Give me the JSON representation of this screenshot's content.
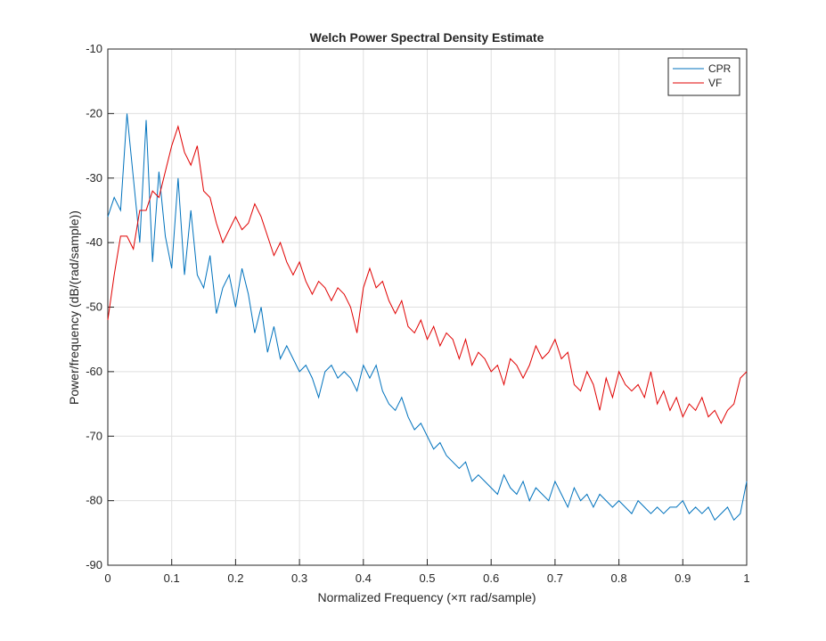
{
  "chart_data": {
    "type": "line",
    "title": "Welch Power Spectral Density Estimate",
    "x_label": "Normalized Frequency  (×π rad/sample)",
    "y_label": "Power/frequency (dB/(rad/sample))",
    "x": [
      0,
      0.01,
      0.02,
      0.03,
      0.04,
      0.05,
      0.06,
      0.07,
      0.08,
      0.09,
      0.1,
      0.11,
      0.12,
      0.13,
      0.14,
      0.15,
      0.16,
      0.17,
      0.18,
      0.19,
      0.2,
      0.21,
      0.22,
      0.23,
      0.24,
      0.25,
      0.26,
      0.27,
      0.28,
      0.29,
      0.3,
      0.31,
      0.32,
      0.33,
      0.34,
      0.35,
      0.36,
      0.37,
      0.38,
      0.39,
      0.4,
      0.41,
      0.42,
      0.43,
      0.44,
      0.45,
      0.46,
      0.47,
      0.48,
      0.49,
      0.5,
      0.51,
      0.52,
      0.53,
      0.54,
      0.55,
      0.56,
      0.57,
      0.58,
      0.59,
      0.6,
      0.61,
      0.62,
      0.63,
      0.64,
      0.65,
      0.66,
      0.67,
      0.68,
      0.69,
      0.7,
      0.71,
      0.72,
      0.73,
      0.74,
      0.75,
      0.76,
      0.77,
      0.78,
      0.79,
      0.8,
      0.81,
      0.82,
      0.83,
      0.84,
      0.85,
      0.86,
      0.87,
      0.88,
      0.89,
      0.9,
      0.91,
      0.92,
      0.93,
      0.94,
      0.95,
      0.96,
      0.97,
      0.98,
      0.99,
      1
    ],
    "series": [
      {
        "name": "CPR",
        "color": "#0072bd",
        "values": [
          -36,
          -33,
          -35,
          -20,
          -30,
          -40,
          -21,
          -43,
          -29,
          -39,
          -44,
          -30,
          -45,
          -35,
          -45,
          -47,
          -42,
          -51,
          -47,
          -45,
          -50,
          -44,
          -48,
          -54,
          -50,
          -57,
          -53,
          -58,
          -56,
          -58,
          -60,
          -59,
          -61,
          -64,
          -60,
          -59,
          -61,
          -60,
          -61,
          -63,
          -59,
          -61,
          -59,
          -63,
          -65,
          -66,
          -64,
          -67,
          -69,
          -68,
          -70,
          -72,
          -71,
          -73,
          -74,
          -75,
          -74,
          -77,
          -76,
          -77,
          -78,
          -79,
          -76,
          -78,
          -79,
          -77,
          -80,
          -78,
          -79,
          -80,
          -77,
          -79,
          -81,
          -78,
          -80,
          -79,
          -81,
          -79,
          -80,
          -81,
          -80,
          -81,
          -82,
          -80,
          -81,
          -82,
          -81,
          -82,
          -81,
          -81,
          -80,
          -82,
          -81,
          -82,
          -81,
          -83,
          -82,
          -81,
          -83,
          -82,
          -77
        ]
      },
      {
        "name": "VF",
        "color": "#e00000",
        "values": [
          -52,
          -45,
          -39,
          -39,
          -41,
          -35,
          -35,
          -32,
          -33,
          -29,
          -25,
          -22,
          -26,
          -28,
          -25,
          -32,
          -33,
          -37,
          -40,
          -38,
          -36,
          -38,
          -37,
          -34,
          -36,
          -39,
          -42,
          -40,
          -43,
          -45,
          -43,
          -46,
          -48,
          -46,
          -47,
          -49,
          -47,
          -48,
          -50,
          -54,
          -47,
          -44,
          -47,
          -46,
          -49,
          -51,
          -49,
          -53,
          -54,
          -52,
          -55,
          -53,
          -56,
          -54,
          -55,
          -58,
          -55,
          -59,
          -57,
          -58,
          -60,
          -59,
          -62,
          -58,
          -59,
          -61,
          -59,
          -56,
          -58,
          -57,
          -55,
          -58,
          -57,
          -62,
          -63,
          -60,
          -62,
          -66,
          -61,
          -64,
          -60,
          -62,
          -63,
          -62,
          -64,
          -60,
          -65,
          -63,
          -66,
          -64,
          -67,
          -65,
          -66,
          -64,
          -67,
          -66,
          -68,
          -66,
          -65,
          -61,
          -60
        ]
      }
    ],
    "xlim": [
      0,
      1
    ],
    "xticks": [
      0,
      0.1,
      0.2,
      0.3,
      0.4,
      0.5,
      0.6,
      0.7,
      0.8,
      0.9,
      1
    ],
    "ylim": [
      -90,
      -10
    ],
    "yticks": [
      -90,
      -80,
      -70,
      -60,
      -50,
      -40,
      -30,
      -20,
      -10
    ],
    "grid": true,
    "legend_position": "top-right"
  }
}
